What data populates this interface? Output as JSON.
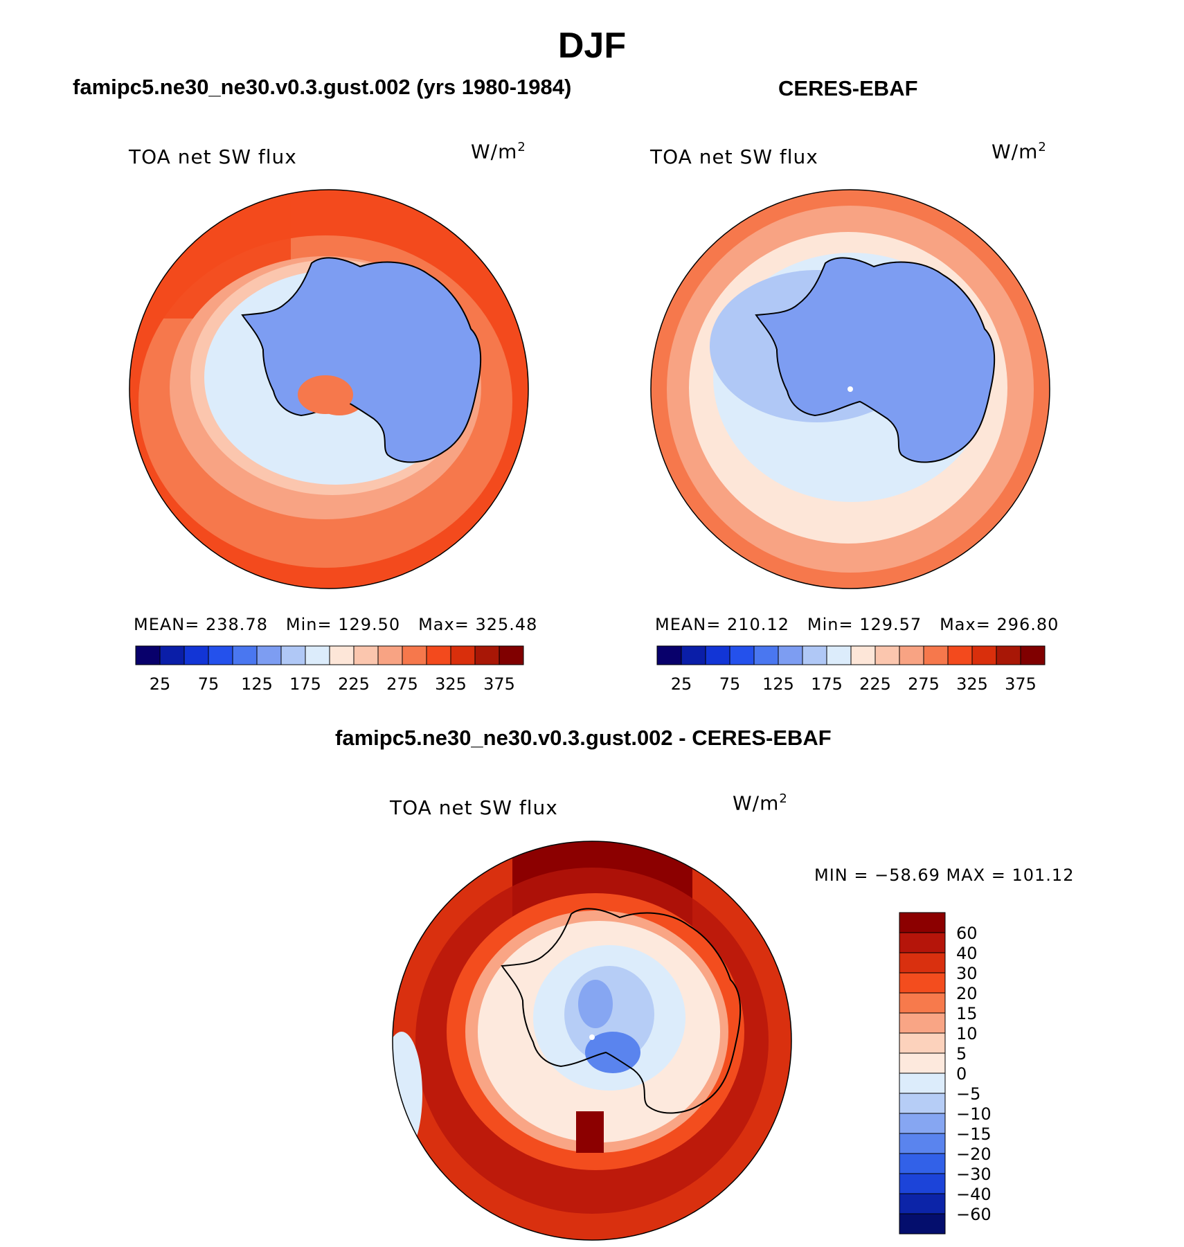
{
  "title": "DJF",
  "panels": [
    {
      "id": "model",
      "title": "famipc5.ne30_ne30.v0.3.gust.002 (yrs 1980-1984)",
      "variable": "TOA net SW flux",
      "units_base": "W/m",
      "units_exp": "2",
      "stats": {
        "mean_label": "MEAN=",
        "mean": "238.78",
        "min_label": "Min=",
        "min": "129.50",
        "max_label": "Max=",
        "max": "325.48"
      }
    },
    {
      "id": "obs",
      "title": "CERES-EBAF",
      "variable": "TOA net SW flux",
      "units_base": "W/m",
      "units_exp": "2",
      "stats": {
        "mean_label": "MEAN=",
        "mean": "210.12",
        "min_label": "Min=",
        "min": "129.57",
        "max_label": "Max=",
        "max": "296.80"
      }
    }
  ],
  "abs_colorbar": {
    "colors": [
      "#08006b",
      "#0a1ea8",
      "#1235d6",
      "#2451ec",
      "#4a77f0",
      "#7d9df2",
      "#b0c8f6",
      "#dcecfb",
      "#fde6d8",
      "#fbc6ae",
      "#f8a383",
      "#f6784c",
      "#f34a1d",
      "#d92f0c",
      "#a81706",
      "#800000"
    ],
    "tick_labels": [
      "25",
      "75",
      "125",
      "175",
      "225",
      "275",
      "325",
      "375"
    ]
  },
  "diff_panel": {
    "title": "famipc5.ne30_ne30.v0.3.gust.002 - CERES-EBAF",
    "variable": "TOA net SW flux",
    "units_base": "W/m",
    "units_exp": "2",
    "range_text": "MIN = −58.69 MAX = 101.12"
  },
  "diff_colorbar": {
    "colors_top_to_bottom": [
      "#8c0000",
      "#b5150a",
      "#d9300f",
      "#f34d1e",
      "#f77a4c",
      "#f9a585",
      "#fcd2bc",
      "#fde9dd",
      "#dcecfb",
      "#b6cdf6",
      "#86a6f2",
      "#5a84ee",
      "#3261e8",
      "#1c44d9",
      "#0c24a8",
      "#040e6d"
    ],
    "tick_labels": [
      "60",
      "40",
      "30",
      "20",
      "15",
      "10",
      "5",
      "0",
      "−5",
      "−10",
      "−15",
      "−20",
      "−30",
      "−40",
      "−60"
    ]
  }
}
